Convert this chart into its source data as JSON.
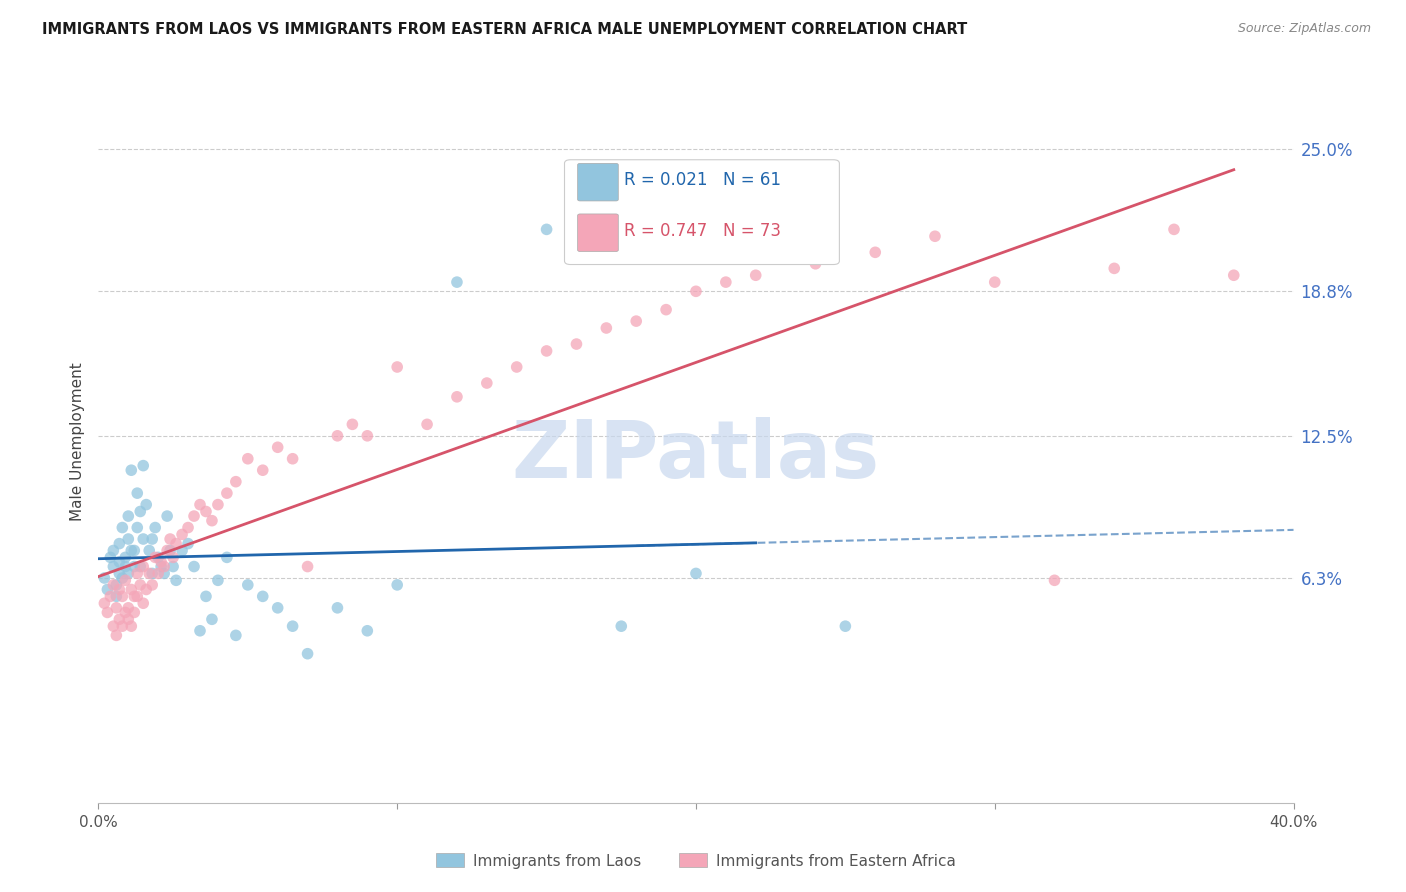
{
  "title": "IMMIGRANTS FROM LAOS VS IMMIGRANTS FROM EASTERN AFRICA MALE UNEMPLOYMENT CORRELATION CHART",
  "source": "Source: ZipAtlas.com",
  "ylabel": "Male Unemployment",
  "ytick_values": [
    0.063,
    0.125,
    0.188,
    0.25
  ],
  "ytick_labels": [
    "6.3%",
    "12.5%",
    "18.8%",
    "25.0%"
  ],
  "xmin": 0.0,
  "xmax": 0.4,
  "ymin": -0.035,
  "ymax": 0.28,
  "legend_r1": "R = 0.021",
  "legend_n1": "N = 61",
  "legend_r2": "R = 0.747",
  "legend_n2": "N = 73",
  "label1": "Immigrants from Laos",
  "label2": "Immigrants from Eastern Africa",
  "color_blue": "#92c5de",
  "color_pink": "#f4a6b8",
  "line_blue": "#2166ac",
  "line_pink": "#d6546a",
  "watermark_color": "#c8d8ee",
  "laos_x": [
    0.002,
    0.003,
    0.004,
    0.005,
    0.005,
    0.006,
    0.006,
    0.007,
    0.007,
    0.007,
    0.008,
    0.008,
    0.009,
    0.009,
    0.01,
    0.01,
    0.01,
    0.011,
    0.011,
    0.012,
    0.012,
    0.013,
    0.013,
    0.014,
    0.014,
    0.015,
    0.015,
    0.016,
    0.017,
    0.018,
    0.018,
    0.019,
    0.02,
    0.021,
    0.022,
    0.023,
    0.024,
    0.025,
    0.026,
    0.028,
    0.03,
    0.032,
    0.034,
    0.036,
    0.038,
    0.04,
    0.043,
    0.046,
    0.05,
    0.055,
    0.06,
    0.065,
    0.07,
    0.08,
    0.09,
    0.1,
    0.12,
    0.15,
    0.175,
    0.2,
    0.25
  ],
  "laos_y": [
    0.063,
    0.058,
    0.072,
    0.068,
    0.075,
    0.06,
    0.055,
    0.065,
    0.078,
    0.07,
    0.063,
    0.085,
    0.072,
    0.068,
    0.08,
    0.065,
    0.09,
    0.075,
    0.11,
    0.068,
    0.075,
    0.085,
    0.1,
    0.092,
    0.068,
    0.08,
    0.112,
    0.095,
    0.075,
    0.08,
    0.065,
    0.085,
    0.072,
    0.068,
    0.065,
    0.09,
    0.075,
    0.068,
    0.062,
    0.075,
    0.078,
    0.068,
    0.04,
    0.055,
    0.045,
    0.062,
    0.072,
    0.038,
    0.06,
    0.055,
    0.05,
    0.042,
    0.03,
    0.05,
    0.04,
    0.06,
    0.192,
    0.215,
    0.042,
    0.065,
    0.042
  ],
  "africa_x": [
    0.002,
    0.003,
    0.004,
    0.005,
    0.005,
    0.006,
    0.006,
    0.007,
    0.007,
    0.008,
    0.008,
    0.009,
    0.009,
    0.01,
    0.01,
    0.011,
    0.011,
    0.012,
    0.012,
    0.013,
    0.013,
    0.014,
    0.015,
    0.015,
    0.016,
    0.017,
    0.018,
    0.019,
    0.02,
    0.021,
    0.022,
    0.023,
    0.024,
    0.025,
    0.026,
    0.028,
    0.03,
    0.032,
    0.034,
    0.036,
    0.038,
    0.04,
    0.043,
    0.046,
    0.05,
    0.055,
    0.06,
    0.065,
    0.07,
    0.08,
    0.085,
    0.09,
    0.1,
    0.11,
    0.12,
    0.13,
    0.14,
    0.15,
    0.16,
    0.17,
    0.18,
    0.19,
    0.2,
    0.21,
    0.22,
    0.24,
    0.26,
    0.28,
    0.3,
    0.32,
    0.34,
    0.36,
    0.38
  ],
  "africa_y": [
    0.052,
    0.048,
    0.055,
    0.042,
    0.06,
    0.038,
    0.05,
    0.045,
    0.058,
    0.042,
    0.055,
    0.048,
    0.062,
    0.05,
    0.045,
    0.058,
    0.042,
    0.055,
    0.048,
    0.065,
    0.055,
    0.06,
    0.052,
    0.068,
    0.058,
    0.065,
    0.06,
    0.072,
    0.065,
    0.07,
    0.068,
    0.075,
    0.08,
    0.072,
    0.078,
    0.082,
    0.085,
    0.09,
    0.095,
    0.092,
    0.088,
    0.095,
    0.1,
    0.105,
    0.115,
    0.11,
    0.12,
    0.115,
    0.068,
    0.125,
    0.13,
    0.125,
    0.155,
    0.13,
    0.142,
    0.148,
    0.155,
    0.162,
    0.165,
    0.172,
    0.175,
    0.18,
    0.188,
    0.192,
    0.195,
    0.2,
    0.205,
    0.212,
    0.192,
    0.062,
    0.198,
    0.215,
    0.195
  ]
}
